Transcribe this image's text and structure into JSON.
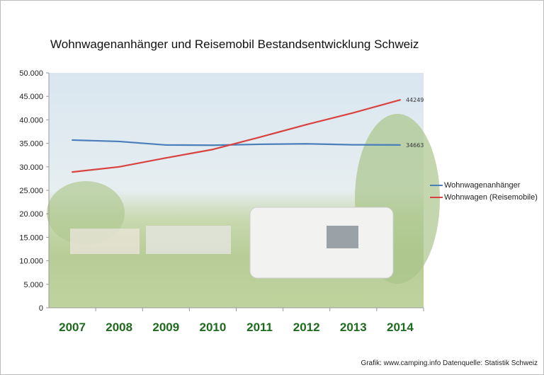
{
  "chart_data": {
    "type": "line",
    "title": "Wohnwagenanhänger und Reisemobil Bestandsentwicklung Schweiz",
    "categories": [
      "2007",
      "2008",
      "2009",
      "2010",
      "2011",
      "2012",
      "2013",
      "2014"
    ],
    "ylim": [
      0,
      50000
    ],
    "yticks": [
      "0",
      "5.000",
      "10.000",
      "15.000",
      "20.000",
      "25.000",
      "30.000",
      "35.000",
      "40.000",
      "45.000",
      "50.000"
    ],
    "grid": false,
    "legend": "right",
    "series": [
      {
        "name": "Wohnwagenanhänger",
        "color": "#4a7ebb",
        "values": [
          35700,
          35400,
          34650,
          34600,
          34800,
          34900,
          34700,
          34663
        ],
        "end_label": "34663"
      },
      {
        "name": "Wohnwagen (Reisemobile)",
        "color": "#d9423f",
        "values": [
          28900,
          30000,
          31900,
          33700,
          36300,
          39000,
          41500,
          44249
        ],
        "end_label": "44249"
      }
    ],
    "xtick_color": "#1e6b1e"
  },
  "source": "Grafik: www.camping.info  Datenquelle: Statistik Schweiz"
}
